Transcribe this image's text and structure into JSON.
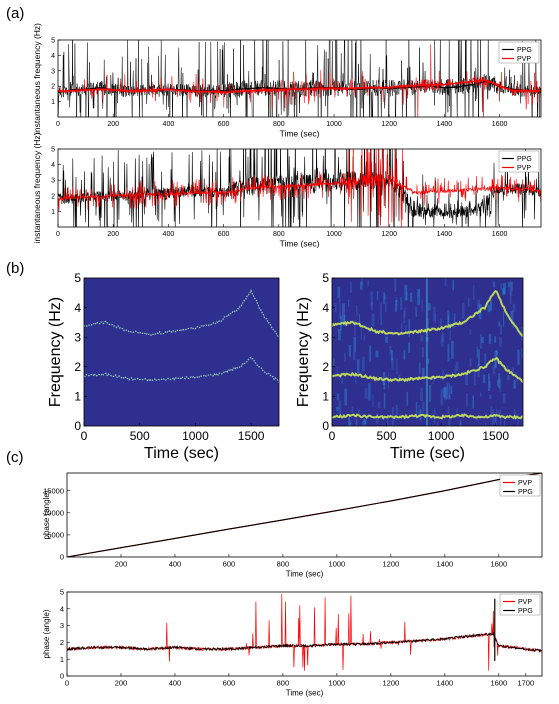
{
  "panels": [
    "(a)",
    "(b)",
    "(c)"
  ],
  "chart_data": [
    {
      "id": "a1",
      "panel": "(a)",
      "type": "line",
      "xlabel": "Time (sec)",
      "ylabel": "instantaneous frequency (Hz)",
      "xlim": [
        0,
        1750
      ],
      "ylim": [
        0,
        5
      ],
      "xticks": [
        0,
        200,
        400,
        600,
        800,
        1000,
        1200,
        1400,
        1600
      ],
      "yticks": [
        1,
        2,
        3,
        4,
        5
      ],
      "legend": "top-right",
      "series": [
        {
          "name": "PPG",
          "color": "#000000",
          "x": [
            0,
            50,
            100,
            150,
            200,
            250,
            300,
            350,
            400,
            450,
            500,
            550,
            600,
            650,
            700,
            750,
            800,
            850,
            900,
            950,
            1000,
            1050,
            1100,
            1150,
            1200,
            1250,
            1300,
            1350,
            1400,
            1450,
            1500,
            1550,
            1600,
            1650,
            1700,
            1750
          ],
          "y": [
            1.6,
            1.75,
            1.8,
            1.9,
            1.75,
            1.7,
            1.75,
            1.7,
            1.8,
            1.75,
            1.7,
            1.7,
            1.7,
            1.8,
            1.85,
            1.9,
            1.85,
            1.8,
            1.85,
            1.9,
            1.9,
            1.8,
            1.8,
            1.9,
            1.85,
            1.9,
            1.95,
            2.0,
            1.9,
            1.95,
            2.1,
            2.3,
            2.0,
            1.8,
            1.7,
            1.7
          ]
        },
        {
          "name": "PVP",
          "color": "#ff0000",
          "x": [
            0,
            50,
            100,
            150,
            200,
            250,
            300,
            350,
            400,
            450,
            500,
            550,
            600,
            650,
            700,
            750,
            800,
            850,
            900,
            950,
            1000,
            1050,
            1100,
            1150,
            1200,
            1250,
            1300,
            1350,
            1400,
            1450,
            1500,
            1550,
            1600,
            1650,
            1700,
            1750
          ],
          "y": [
            1.65,
            1.7,
            1.75,
            1.8,
            1.75,
            1.7,
            1.7,
            1.75,
            1.8,
            1.7,
            1.65,
            1.65,
            1.6,
            1.65,
            1.7,
            1.75,
            1.75,
            1.8,
            1.8,
            1.85,
            1.85,
            1.85,
            1.9,
            1.9,
            1.9,
            2.0,
            2.05,
            2.1,
            2.1,
            2.2,
            2.3,
            2.4,
            2.0,
            1.7,
            1.7,
            1.7
          ]
        }
      ]
    },
    {
      "id": "a2",
      "panel": "(a)",
      "type": "line",
      "xlabel": "Time (sec)",
      "ylabel": "instantaneous frequency (Hz)",
      "xlim": [
        0,
        1750
      ],
      "ylim": [
        0,
        5
      ],
      "xticks": [
        0,
        200,
        400,
        600,
        800,
        1000,
        1200,
        1400,
        1600
      ],
      "yticks": [
        1,
        2,
        3,
        4,
        5
      ],
      "legend": "top-right",
      "series": [
        {
          "name": "PPG",
          "color": "#000000",
          "x": [
            0,
            100,
            200,
            300,
            400,
            500,
            600,
            700,
            800,
            900,
            1000,
            1100,
            1200,
            1300,
            1400,
            1500,
            1600,
            1700,
            1750
          ],
          "y": [
            1.8,
            1.9,
            2.0,
            2.1,
            2.2,
            2.3,
            2.2,
            2.6,
            2.7,
            2.8,
            2.9,
            3.0,
            3.0,
            0.9,
            0.8,
            0.9,
            2.5,
            2.4,
            2.3
          ]
        },
        {
          "name": "PVP",
          "color": "#ff0000",
          "x": [
            0,
            100,
            200,
            300,
            400,
            500,
            600,
            700,
            800,
            900,
            1000,
            1100,
            1200,
            1300,
            1400,
            1500,
            1600,
            1700,
            1750
          ],
          "y": [
            1.8,
            1.9,
            2.0,
            2.1,
            2.1,
            2.2,
            2.2,
            2.5,
            2.6,
            2.7,
            2.8,
            2.9,
            3.0,
            2.2,
            2.3,
            2.4,
            2.5,
            2.4,
            2.3
          ]
        }
      ]
    },
    {
      "id": "b1",
      "panel": "(b)",
      "type": "heatmap",
      "xlabel": "Time (sec)",
      "ylabel": "Frequency (Hz)",
      "xlim": [
        0,
        1750
      ],
      "ylim": [
        0,
        5
      ],
      "xticks": [
        0,
        500,
        1000,
        1500
      ],
      "yticks": [
        0,
        1,
        2,
        3,
        4,
        5
      ],
      "ridges": [
        {
          "x": [
            0,
            200,
            400,
            600,
            800,
            1000,
            1200,
            1400,
            1500,
            1600,
            1750
          ],
          "y": [
            1.7,
            1.75,
            1.6,
            1.55,
            1.6,
            1.65,
            1.75,
            2.0,
            2.3,
            1.9,
            1.5
          ]
        },
        {
          "x": [
            0,
            200,
            400,
            600,
            800,
            1000,
            1200,
            1400,
            1500,
            1600,
            1750
          ],
          "y": [
            3.4,
            3.5,
            3.2,
            3.1,
            3.2,
            3.3,
            3.5,
            4.0,
            4.6,
            3.8,
            3.0
          ]
        }
      ]
    },
    {
      "id": "b2",
      "panel": "(b)",
      "type": "heatmap",
      "xlabel": "Time (sec)",
      "ylabel": "Frequency (Hz)",
      "xlim": [
        0,
        1750
      ],
      "ylim": [
        0,
        5
      ],
      "xticks": [
        0,
        500,
        1000,
        1500
      ],
      "yticks": [
        0,
        1,
        2,
        3,
        4,
        5
      ],
      "ridges": [
        {
          "x": [
            0,
            200,
            400,
            600,
            800,
            1000,
            1200,
            1400,
            1500,
            1600,
            1750
          ],
          "y": [
            0.3,
            0.35,
            0.3,
            0.3,
            0.35,
            0.3,
            0.35,
            0.3,
            0.35,
            0.3,
            0.3
          ]
        },
        {
          "x": [
            0,
            200,
            400,
            600,
            800,
            1000,
            1200,
            1400,
            1500,
            1600,
            1750
          ],
          "y": [
            1.7,
            1.75,
            1.6,
            1.55,
            1.6,
            1.65,
            1.75,
            2.0,
            2.3,
            1.9,
            1.5
          ]
        },
        {
          "x": [
            0,
            200,
            400,
            600,
            800,
            1000,
            1200,
            1400,
            1500,
            1600,
            1750
          ],
          "y": [
            3.4,
            3.5,
            3.2,
            3.1,
            3.2,
            3.3,
            3.5,
            4.0,
            4.6,
            3.8,
            3.0
          ]
        }
      ]
    },
    {
      "id": "c1",
      "panel": "(c)",
      "type": "line",
      "xlabel": "Time (sec)",
      "ylabel": "phase (angle)",
      "xlim": [
        0,
        1760
      ],
      "ylim": [
        0,
        19000
      ],
      "xticks": [
        200,
        400,
        600,
        800,
        1000,
        1200,
        1400,
        1600
      ],
      "yticks": [
        0,
        5000,
        10000,
        15000
      ],
      "legend": "top-right",
      "series": [
        {
          "name": "PVP",
          "color": "#ff0000",
          "x": [
            0,
            200,
            400,
            600,
            800,
            1000,
            1200,
            1400,
            1600,
            1760
          ],
          "y": [
            0,
            2100,
            4200,
            6300,
            8400,
            10500,
            12700,
            15000,
            17500,
            19000
          ]
        },
        {
          "name": "PPG",
          "color": "#000000",
          "x": [
            0,
            200,
            400,
            600,
            800,
            1000,
            1200,
            1400,
            1600,
            1760
          ],
          "y": [
            0,
            2100,
            4200,
            6300,
            8400,
            10500,
            12700,
            15000,
            17500,
            19000
          ]
        }
      ]
    },
    {
      "id": "c2",
      "panel": "(c)",
      "type": "line",
      "xlabel": "Time (sec)",
      "ylabel": "phase (angle)",
      "xlim": [
        0,
        1760
      ],
      "ylim": [
        0,
        5
      ],
      "xticks": [
        0,
        200,
        400,
        600,
        800,
        1000,
        1200,
        1400,
        1600,
        1700
      ],
      "yticks": [
        0,
        1,
        2,
        3,
        4,
        5
      ],
      "legend": "top-right",
      "series": [
        {
          "name": "PVP",
          "color": "#ff0000",
          "x": [
            0,
            100,
            200,
            300,
            360,
            380,
            400,
            500,
            600,
            630,
            700,
            800,
            850,
            900,
            950,
            1000,
            1100,
            1200,
            1300,
            1400,
            1500,
            1580,
            1600,
            1700,
            1760
          ],
          "y": [
            1.6,
            1.7,
            1.7,
            1.6,
            1.7,
            4.0,
            1.7,
            1.6,
            1.6,
            3.5,
            1.7,
            1.8,
            4.8,
            1.9,
            4.5,
            1.9,
            1.9,
            2.0,
            2.1,
            2.2,
            2.4,
            4.5,
            1.7,
            1.6,
            1.5
          ]
        },
        {
          "name": "PPG",
          "color": "#000000",
          "x": [
            0,
            100,
            200,
            300,
            400,
            500,
            600,
            700,
            800,
            900,
            1000,
            1100,
            1200,
            1300,
            1400,
            1500,
            1580,
            1600,
            1700,
            1760
          ],
          "y": [
            1.6,
            1.7,
            1.7,
            1.6,
            1.7,
            1.6,
            1.6,
            1.7,
            1.8,
            1.8,
            1.9,
            1.9,
            2.0,
            2.1,
            2.2,
            2.4,
            2.5,
            1.8,
            1.6,
            1.5
          ]
        }
      ]
    }
  ]
}
